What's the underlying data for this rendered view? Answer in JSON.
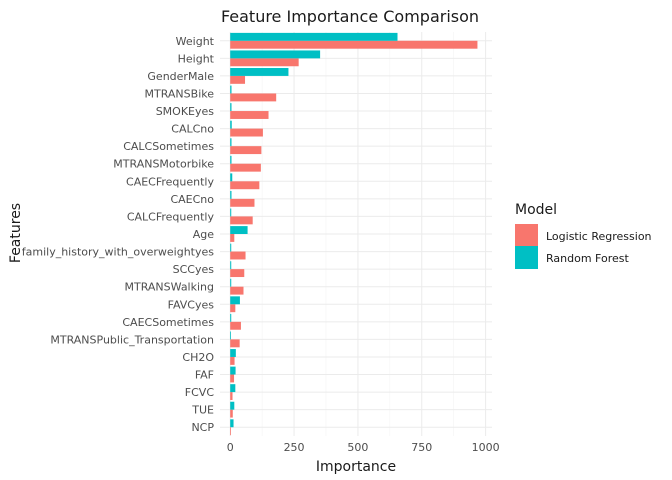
{
  "chart_data": {
    "type": "bar",
    "orientation": "horizontal",
    "title": "Feature Importance Comparison",
    "xlabel": "Importance",
    "ylabel": "Features",
    "xlim": [
      -40,
      1025
    ],
    "xticks": [
      0,
      250,
      500,
      750,
      1000
    ],
    "xtick_labels": [
      "0",
      "250",
      "500",
      "750",
      "1000"
    ],
    "grid": true,
    "legend": {
      "title": "Model",
      "placement": "right"
    },
    "categories": [
      "Weight",
      "Height",
      "GenderMale",
      "MTRANSBike",
      "SMOKEyes",
      "CALCno",
      "CALCSometimes",
      "MTRANSMotorbike",
      "CAECFrequently",
      "CAECno",
      "CALCFrequently",
      "Age",
      "family_history_with_overweightyes",
      "SCCyes",
      "MTRANSWalking",
      "FAVCyes",
      "CAECSometimes",
      "MTRANSPublic_Transportation",
      "CH2O",
      "FAF",
      "FCVC",
      "TUE",
      "NCP"
    ],
    "series": [
      {
        "name": "Logistic Regression",
        "color": "#F8766D",
        "values": [
          968,
          268,
          58,
          180,
          150,
          128,
          122,
          120,
          114,
          95,
          88,
          16,
          60,
          55,
          52,
          20,
          42,
          37,
          17,
          15,
          9,
          10,
          3
        ]
      },
      {
        "name": "Random Forest",
        "color": "#00BFC4",
        "values": [
          655,
          352,
          228,
          5,
          5,
          6,
          5,
          5,
          8,
          5,
          4,
          68,
          4,
          4,
          4,
          38,
          4,
          3,
          22,
          21,
          20,
          16,
          13
        ]
      }
    ]
  }
}
